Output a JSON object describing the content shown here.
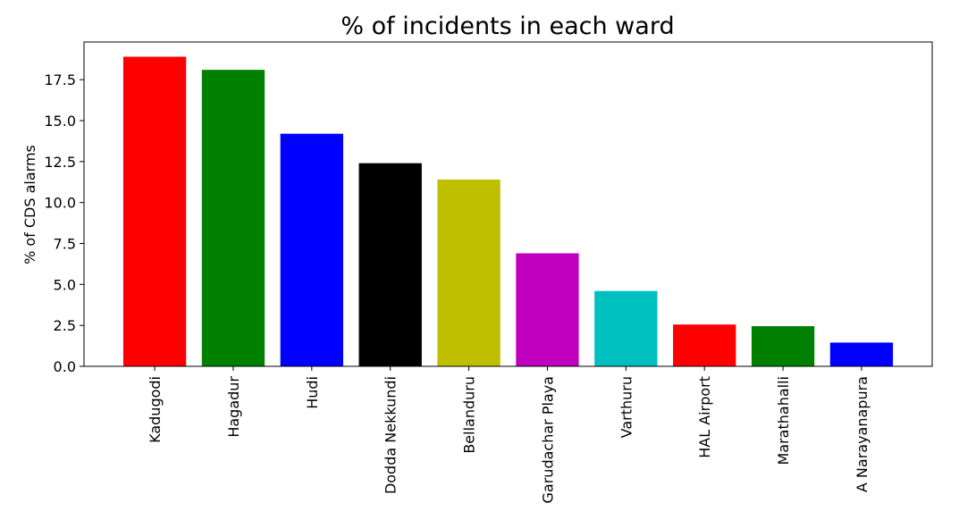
{
  "chart_data": {
    "type": "bar",
    "title": "% of incidents in each ward",
    "xlabel": "",
    "ylabel": "% of CDS alarms",
    "categories": [
      "Kadugodi",
      "Hagadur",
      "Hudi",
      "Dodda Nekkundi",
      "Bellanduru",
      "Garudachar Playa",
      "Varthuru",
      "HAL Airport",
      "Marathahalli",
      "A Narayanapura"
    ],
    "values": [
      18.9,
      18.1,
      14.2,
      12.4,
      11.4,
      6.9,
      4.6,
      2.55,
      2.45,
      1.45
    ],
    "colors": [
      "#ff0000",
      "#008000",
      "#0000ff",
      "#000000",
      "#bfbf00",
      "#bf00bf",
      "#00bfbf",
      "#ff0000",
      "#008000",
      "#0000ff"
    ],
    "ylim": [
      0,
      19.8
    ],
    "yticks": [
      0.0,
      2.5,
      5.0,
      7.5,
      10.0,
      12.5,
      15.0,
      17.5
    ],
    "ytick_labels": [
      "0.0",
      "2.5",
      "5.0",
      "7.5",
      "10.0",
      "12.5",
      "15.0",
      "17.5"
    ],
    "grid": false,
    "legend": "none"
  }
}
